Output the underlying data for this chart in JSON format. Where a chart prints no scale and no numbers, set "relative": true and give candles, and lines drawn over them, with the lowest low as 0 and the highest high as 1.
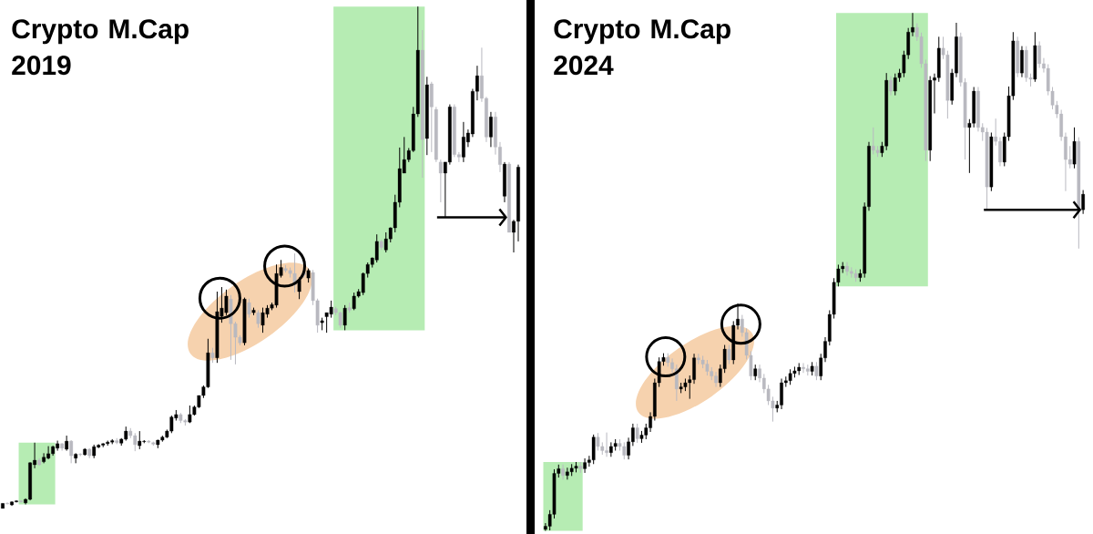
{
  "chart_data": [
    {
      "type": "candlestick",
      "title": "Crypto M.Cap 2019",
      "relative": true,
      "marker": "none",
      "categories": [
        null,
        null,
        null,
        null,
        null,
        null,
        null,
        null,
        null,
        null,
        null,
        null,
        null,
        null,
        null,
        null,
        null,
        null,
        null,
        null,
        null,
        null,
        null,
        null,
        null,
        null,
        null,
        null,
        null,
        null,
        null,
        null,
        null,
        null,
        null,
        null,
        null,
        null,
        null,
        null,
        null,
        null,
        null,
        null,
        null,
        null,
        null,
        null,
        null,
        null,
        null,
        null,
        null,
        null,
        null,
        null,
        null,
        null,
        null,
        null,
        null,
        null,
        null,
        null,
        null,
        null,
        null,
        null,
        null,
        null,
        null,
        null,
        null,
        null,
        null,
        null,
        null,
        null,
        null,
        null,
        null,
        null,
        null,
        null,
        null,
        null,
        null,
        null,
        null,
        null,
        null,
        null,
        null,
        null,
        null,
        null,
        null,
        null,
        null,
        null,
        null,
        null,
        null,
        null,
        null,
        null,
        null,
        null,
        null,
        null,
        null,
        null,
        null,
        null
      ],
      "ohlc": [
        [
          0,
          0.01,
          0,
          0.01
        ],
        [
          0.01,
          0.012,
          0.008,
          0.009
        ],
        [
          0.007,
          0.014,
          0.005,
          0.013
        ],
        [
          0.013,
          0.016,
          0.012,
          0.015
        ],
        [
          0.015,
          0.016,
          0.012,
          0.013
        ],
        [
          0.011,
          0.02,
          0.008,
          0.018
        ],
        [
          0.018,
          0.092,
          0.016,
          0.091
        ],
        [
          0.087,
          0.131,
          0.08,
          0.096
        ],
        [
          0.096,
          0.1,
          0.085,
          0.087
        ],
        [
          0.093,
          0.11,
          0.09,
          0.102
        ],
        [
          0.1,
          0.124,
          0.098,
          0.109
        ],
        [
          0.109,
          0.125,
          0.105,
          0.123
        ],
        [
          0.12,
          0.135,
          0.115,
          0.129
        ],
        [
          0.129,
          0.13,
          0.115,
          0.12
        ],
        [
          0.118,
          0.145,
          0.115,
          0.134
        ],
        [
          0.134,
          0.136,
          0.09,
          0.105
        ],
        [
          0.1,
          0.11,
          0.09,
          0.108
        ],
        [
          0.108,
          0.11,
          0.104,
          0.107
        ],
        [
          0.107,
          0.12,
          0.105,
          0.118
        ],
        [
          0.118,
          0.12,
          0.1,
          0.105
        ],
        [
          0.105,
          0.127,
          0.1,
          0.123
        ],
        [
          0.122,
          0.128,
          0.12,
          0.126
        ],
        [
          0.126,
          0.13,
          0.122,
          0.129
        ],
        [
          0.129,
          0.135,
          0.125,
          0.132
        ],
        [
          0.132,
          0.138,
          0.128,
          0.135
        ],
        [
          0.135,
          0.14,
          0.128,
          0.131
        ],
        [
          0.13,
          0.14,
          0.125,
          0.138
        ],
        [
          0.138,
          0.163,
          0.135,
          0.154
        ],
        [
          0.154,
          0.16,
          0.14,
          0.145
        ],
        [
          0.145,
          0.15,
          0.114,
          0.127
        ],
        [
          0.125,
          0.154,
          0.118,
          0.134
        ],
        [
          0.133,
          0.136,
          0.13,
          0.134
        ],
        [
          0.134,
          0.136,
          0.13,
          0.132
        ],
        [
          0.131,
          0.133,
          0.125,
          0.128
        ],
        [
          0.127,
          0.137,
          0.12,
          0.136
        ],
        [
          0.136,
          0.145,
          0.133,
          0.142
        ],
        [
          0.142,
          0.157,
          0.14,
          0.154
        ],
        [
          0.154,
          0.185,
          0.15,
          0.182
        ],
        [
          0.18,
          0.196,
          0.175,
          0.187
        ],
        [
          0.187,
          0.19,
          0.17,
          0.175
        ],
        [
          0.175,
          0.178,
          0.165,
          0.172
        ],
        [
          0.172,
          0.205,
          0.17,
          0.187
        ],
        [
          0.187,
          0.205,
          0.185,
          0.202
        ],
        [
          0.202,
          0.225,
          0.2,
          0.225
        ],
        [
          0.225,
          0.245,
          0.22,
          0.242
        ],
        [
          0.242,
          0.338,
          0.24,
          0.31
        ],
        [
          0.31,
          0.32,
          0.29,
          0.3
        ],
        [
          0.3,
          0.432,
          0.29,
          0.392
        ],
        [
          0.383,
          0.441,
          0.37,
          0.399
        ],
        [
          0.39,
          0.436,
          0.385,
          0.423
        ],
        [
          0.417,
          0.425,
          0.296,
          0.368
        ],
        [
          0.368,
          0.372,
          0.287,
          0.341
        ],
        [
          0.341,
          0.345,
          0.325,
          0.33
        ],
        [
          0.33,
          0.42,
          0.325,
          0.417
        ],
        [
          0.41,
          0.418,
          0.38,
          0.387
        ],
        [
          0.39,
          0.4,
          0.385,
          0.395
        ],
        [
          0.39,
          0.395,
          0.36,
          0.368
        ],
        [
          0.365,
          0.4,
          0.35,
          0.39
        ],
        [
          0.387,
          0.405,
          0.38,
          0.399
        ],
        [
          0.399,
          0.41,
          0.395,
          0.406
        ],
        [
          0.405,
          0.486,
          0.4,
          0.468
        ],
        [
          0.464,
          0.495,
          0.46,
          0.48
        ],
        [
          0.478,
          0.485,
          0.47,
          0.474
        ],
        [
          0.474,
          0.48,
          0.46,
          0.468
        ],
        [
          0.468,
          0.508,
          0.43,
          0.446
        ],
        [
          0.432,
          0.46,
          0.417,
          0.455
        ],
        [
          0.47,
          0.48,
          0.46,
          0.465
        ],
        [
          0.459,
          0.478,
          0.45,
          0.474
        ],
        [
          0.47,
          0.475,
          0.405,
          0.414
        ],
        [
          0.414,
          0.418,
          0.35,
          0.365
        ],
        [
          0.37,
          0.38,
          0.355,
          0.374
        ],
        [
          0.382,
          0.39,
          0.35,
          0.39
        ],
        [
          0.387,
          0.414,
          0.38,
          0.401
        ],
        [
          0.398,
          0.402,
          0.385,
          0.39
        ],
        [
          0.39,
          0.392,
          0.36,
          0.365
        ],
        [
          0.365,
          0.405,
          0.355,
          0.399
        ],
        [
          0.4,
          0.41,
          0.39,
          0.395
        ],
        [
          0.398,
          0.43,
          0.395,
          0.423
        ],
        [
          0.423,
          0.437,
          0.42,
          0.432
        ],
        [
          0.43,
          0.47,
          0.425,
          0.468
        ],
        [
          0.468,
          0.49,
          0.46,
          0.486
        ],
        [
          0.486,
          0.5,
          0.48,
          0.499
        ],
        [
          0.495,
          0.546,
          0.49,
          0.532
        ],
        [
          0.532,
          0.535,
          0.515,
          0.52
        ],
        [
          0.515,
          0.55,
          0.51,
          0.537
        ],
        [
          0.537,
          0.56,
          0.53,
          0.559
        ],
        [
          0.559,
          0.625,
          0.55,
          0.61
        ],
        [
          0.61,
          0.719,
          0.6,
          0.677
        ],
        [
          0.668,
          0.74,
          0.668,
          0.695
        ],
        [
          0.695,
          0.718,
          0.69,
          0.713
        ],
        [
          0.713,
          0.8,
          0.71,
          0.786
        ],
        [
          0.786,
          1,
          0.78,
          0.913
        ],
        [
          0.913,
          0.953,
          0.659,
          0.735
        ],
        [
          0.737,
          0.86,
          0.704,
          0.844
        ],
        [
          0.846,
          0.85,
          0.71,
          0.8
        ],
        [
          0.795,
          0.8,
          0.69,
          0.695
        ],
        [
          0.69,
          0.695,
          0.61,
          0.668
        ],
        [
          0.668,
          0.69,
          0.58,
          0.69
        ],
        [
          0.69,
          0.805,
          0.685,
          0.8
        ],
        [
          0.8,
          0.805,
          0.7,
          0.705
        ],
        [
          0.705,
          0.71,
          0.69,
          0.7
        ],
        [
          0.7,
          0.77,
          0.69,
          0.74
        ],
        [
          0.73,
          0.755,
          0.72,
          0.748
        ],
        [
          0.746,
          0.836,
          0.74,
          0.831
        ],
        [
          0.831,
          0.882,
          0.813,
          0.862
        ],
        [
          0.862,
          0.918,
          0.81,
          0.817
        ],
        [
          0.817,
          0.82,
          0.73,
          0.74
        ],
        [
          0.74,
          0.79,
          0.72,
          0.78
        ],
        [
          0.78,
          0.79,
          0.705,
          0.72
        ],
        [
          0.72,
          0.73,
          0.67,
          0.685
        ],
        [
          0.622,
          0.69,
          0.61,
          0.686
        ],
        [
          0.686,
          0.69,
          0.55,
          0.55
        ],
        [
          0.55,
          0.575,
          0.51,
          0.572
        ],
        [
          0.572,
          0.685,
          0.532,
          0.68
        ]
      ],
      "colors": [
        "#000000",
        "#b9b9c0",
        "#000000",
        "#000000",
        "#b9b9c0",
        "#000000",
        "#000000",
        "#000000",
        "#b9b9c0",
        "#000000",
        "#000000",
        "#000000",
        "#000000",
        "#b9b9c0",
        "#000000",
        "#b9b9c0",
        "#000000",
        "#b9b9c0",
        "#000000",
        "#b9b9c0",
        "#000000",
        "#000000",
        "#000000",
        "#000000",
        "#000000",
        "#b9b9c0",
        "#000000",
        "#000000",
        "#b9b9c0",
        "#b9b9c0",
        "#000000",
        "#000000",
        "#b9b9c0",
        "#b9b9c0",
        "#000000",
        "#000000",
        "#000000",
        "#000000",
        "#000000",
        "#b9b9c0",
        "#b9b9c0",
        "#000000",
        "#000000",
        "#000000",
        "#000000",
        "#000000",
        "#b9b9c0",
        "#000000",
        "#000000",
        "#000000",
        "#b9b9c0",
        "#b9b9c0",
        "#b9b9c0",
        "#000000",
        "#b9b9c0",
        "#000000",
        "#b9b9c0",
        "#000000",
        "#000000",
        "#000000",
        "#000000",
        "#000000",
        "#b9b9c0",
        "#b9b9c0",
        "#b9b9c0",
        "#000000",
        "#b9b9c0",
        "#000000",
        "#b9b9c0",
        "#b9b9c0",
        "#000000",
        "#000000",
        "#000000",
        "#b9b9c0",
        "#b9b9c0",
        "#000000",
        "#b9b9c0",
        "#000000",
        "#000000",
        "#000000",
        "#000000",
        "#000000",
        "#000000",
        "#b9b9c0",
        "#000000",
        "#000000",
        "#000000",
        "#000000",
        "#000000",
        "#000000",
        "#000000",
        "#000000",
        "#b9b9c0",
        "#000000",
        "#b9b9c0",
        "#b9b9c0",
        "#b9b9c0",
        "#000000",
        "#000000",
        "#b9b9c0",
        "#b9b9c0",
        "#000000",
        "#000000",
        "#000000",
        "#000000",
        "#b9b9c0",
        "#b9b9c0",
        "#000000",
        "#b9b9c0",
        "#b9b9c0",
        "#000000",
        "#b9b9c0",
        "#000000",
        "#000000"
      ]
    },
    {
      "type": "candlestick",
      "title": "Crypto M.Cap 2024",
      "relative": true,
      "marker": "none",
      "categories": [
        null,
        null,
        null,
        null,
        null,
        null,
        null,
        null,
        null,
        null,
        null,
        null,
        null,
        null,
        null,
        null,
        null,
        null,
        null,
        null,
        null,
        null,
        null,
        null,
        null,
        null,
        null,
        null,
        null,
        null,
        null,
        null,
        null,
        null,
        null,
        null,
        null,
        null,
        null,
        null,
        null,
        null,
        null,
        null,
        null,
        null,
        null,
        null,
        null,
        null,
        null,
        null,
        null,
        null,
        null,
        null,
        null,
        null,
        null,
        null,
        null,
        null,
        null,
        null,
        null,
        null,
        null,
        null,
        null,
        null,
        null,
        null,
        null,
        null,
        null,
        null,
        null,
        null,
        null,
        null,
        null,
        null,
        null,
        null,
        null,
        null,
        null,
        null,
        null,
        null,
        null,
        null,
        null,
        null,
        null,
        null,
        null,
        null,
        null,
        null,
        null,
        null,
        null,
        null,
        null,
        null,
        null,
        null,
        null,
        null,
        null,
        null,
        null,
        null,
        null,
        null,
        null,
        null,
        null,
        null,
        null,
        null,
        null,
        null
      ],
      "ohlc": [
        [
          0.003,
          0.015,
          0,
          0.009
        ],
        [
          0.009,
          0.04,
          0.001,
          0.032
        ],
        [
          0.032,
          0.119,
          0.024,
          0.111
        ],
        [
          0.111,
          0.128,
          0.103,
          0.12
        ],
        [
          0.12,
          0.128,
          0.099,
          0.107
        ],
        [
          0.107,
          0.122,
          0.099,
          0.114
        ],
        [
          0.114,
          0.129,
          0.106,
          0.121
        ],
        [
          0.121,
          0.133,
          0.113,
          0.125
        ],
        [
          0.125,
          0.133,
          0.112,
          0.12
        ],
        [
          0.12,
          0.14,
          0.112,
          0.132
        ],
        [
          0.132,
          0.145,
          0.124,
          0.137
        ],
        [
          0.137,
          0.186,
          0.129,
          0.181
        ],
        [
          0.181,
          0.189,
          0.155,
          0.163
        ],
        [
          0.163,
          0.171,
          0.147,
          0.155
        ],
        [
          0.155,
          0.19,
          0.143,
          0.151
        ],
        [
          0.151,
          0.171,
          0.143,
          0.163
        ],
        [
          0.163,
          0.177,
          0.155,
          0.169
        ],
        [
          0.169,
          0.177,
          0.155,
          0.163
        ],
        [
          0.163,
          0.171,
          0.138,
          0.146
        ],
        [
          0.146,
          0.18,
          0.138,
          0.172
        ],
        [
          0.172,
          0.207,
          0.164,
          0.199
        ],
        [
          0.199,
          0.207,
          0.17,
          0.178
        ],
        [
          0.178,
          0.193,
          0.17,
          0.185
        ],
        [
          0.185,
          0.207,
          0.177,
          0.199
        ],
        [
          0.199,
          0.229,
          0.191,
          0.221
        ],
        [
          0.221,
          0.294,
          0.213,
          0.286
        ],
        [
          0.286,
          0.335,
          0.278,
          0.327
        ],
        [
          0.327,
          0.343,
          0.319,
          0.335
        ],
        [
          0.335,
          0.343,
          0.317,
          0.325
        ],
        [
          0.325,
          0.333,
          0.305,
          0.313
        ],
        [
          0.313,
          0.321,
          0.251,
          0.274
        ],
        [
          0.274,
          0.286,
          0.266,
          0.278
        ],
        [
          0.278,
          0.294,
          0.27,
          0.286
        ],
        [
          0.286,
          0.3,
          0.255,
          0.292
        ],
        [
          0.292,
          0.342,
          0.284,
          0.334
        ],
        [
          0.334,
          0.342,
          0.322,
          0.33
        ],
        [
          0.33,
          0.338,
          0.314,
          0.322
        ],
        [
          0.322,
          0.33,
          0.3,
          0.308
        ],
        [
          0.308,
          0.316,
          0.291,
          0.299
        ],
        [
          0.299,
          0.307,
          0.278,
          0.286
        ],
        [
          0.286,
          0.321,
          0.278,
          0.313
        ],
        [
          0.313,
          0.359,
          0.305,
          0.351
        ],
        [
          0.351,
          0.359,
          0.322,
          0.33
        ],
        [
          0.33,
          0.405,
          0.322,
          0.397
        ],
        [
          0.397,
          0.439,
          0.389,
          0.409
        ],
        [
          0.409,
          0.417,
          0.375,
          0.383
        ],
        [
          0.383,
          0.391,
          0.331,
          0.339
        ],
        [
          0.339,
          0.347,
          0.291,
          0.299
        ],
        [
          0.299,
          0.321,
          0.291,
          0.313
        ],
        [
          0.313,
          0.321,
          0.287,
          0.295
        ],
        [
          0.295,
          0.303,
          0.266,
          0.274
        ],
        [
          0.274,
          0.282,
          0.243,
          0.251
        ],
        [
          0.251,
          0.259,
          0.211,
          0.237
        ],
        [
          0.237,
          0.251,
          0.229,
          0.243
        ],
        [
          0.243,
          0.294,
          0.235,
          0.286
        ],
        [
          0.286,
          0.298,
          0.278,
          0.29
        ],
        [
          0.29,
          0.312,
          0.282,
          0.304
        ],
        [
          0.304,
          0.317,
          0.296,
          0.309
        ],
        [
          0.309,
          0.324,
          0.301,
          0.316
        ],
        [
          0.316,
          0.324,
          0.305,
          0.313
        ],
        [
          0.313,
          0.321,
          0.3,
          0.308
        ],
        [
          0.308,
          0.326,
          0.3,
          0.318
        ],
        [
          0.318,
          0.326,
          0.291,
          0.299
        ],
        [
          0.299,
          0.342,
          0.291,
          0.334
        ],
        [
          0.334,
          0.374,
          0.326,
          0.366
        ],
        [
          0.366,
          0.426,
          0.358,
          0.418
        ],
        [
          0.418,
          0.488,
          0.41,
          0.48
        ],
        [
          0.48,
          0.514,
          0.472,
          0.506
        ],
        [
          0.506,
          0.519,
          0.498,
          0.511
        ],
        [
          0.511,
          0.519,
          0.493,
          0.501
        ],
        [
          0.501,
          0.509,
          0.489,
          0.497
        ],
        [
          0.497,
          0.505,
          0.481,
          0.489
        ],
        [
          0.489,
          0.505,
          0.481,
          0.497
        ],
        [
          0.497,
          0.634,
          0.489,
          0.626
        ],
        [
          0.626,
          0.751,
          0.618,
          0.743
        ],
        [
          0.743,
          0.779,
          0.727,
          0.735
        ],
        [
          0.735,
          0.743,
          0.722,
          0.73
        ],
        [
          0.73,
          0.751,
          0.722,
          0.743
        ],
        [
          0.743,
          0.884,
          0.735,
          0.87
        ],
        [
          0.87,
          0.878,
          0.841,
          0.849
        ],
        [
          0.849,
          0.883,
          0.841,
          0.875
        ],
        [
          0.875,
          0.892,
          0.867,
          0.884
        ],
        [
          0.884,
          0.927,
          0.876,
          0.919
        ],
        [
          0.919,
          0.971,
          0.911,
          0.963
        ],
        [
          0.963,
          1,
          0.955,
          0.972
        ],
        [
          0.972,
          0.98,
          0.946,
          0.954
        ],
        [
          0.954,
          0.962,
          0.894,
          0.902
        ],
        [
          0.902,
          0.91,
          0.714,
          0.735
        ],
        [
          0.735,
          0.878,
          0.714,
          0.87
        ],
        [
          0.87,
          0.883,
          0.806,
          0.875
        ],
        [
          0.875,
          0.954,
          0.867,
          0.932
        ],
        [
          0.932,
          0.954,
          0.911,
          0.919
        ],
        [
          0.919,
          0.927,
          0.796,
          0.831
        ],
        [
          0.831,
          0.892,
          0.823,
          0.884
        ],
        [
          0.884,
          0.981,
          0.876,
          0.954
        ],
        [
          0.954,
          0.962,
          0.858,
          0.866
        ],
        [
          0.866,
          0.874,
          0.717,
          0.779
        ],
        [
          0.779,
          0.795,
          0.691,
          0.787
        ],
        [
          0.787,
          0.857,
          0.779,
          0.849
        ],
        [
          0.849,
          0.857,
          0.771,
          0.779
        ],
        [
          0.779,
          0.787,
          0.753,
          0.77
        ],
        [
          0.77,
          0.778,
          0.62,
          0.664
        ],
        [
          0.664,
          0.769,
          0.656,
          0.761
        ],
        [
          0.761,
          0.796,
          0.744,
          0.752
        ],
        [
          0.752,
          0.76,
          0.704,
          0.712
        ],
        [
          0.712,
          0.769,
          0.704,
          0.761
        ],
        [
          0.761,
          0.858,
          0.753,
          0.84
        ],
        [
          0.84,
          0.963,
          0.832,
          0.946
        ],
        [
          0.946,
          0.954,
          0.876,
          0.884
        ],
        [
          0.884,
          0.936,
          0.876,
          0.928
        ],
        [
          0.928,
          0.936,
          0.867,
          0.875
        ],
        [
          0.875,
          0.883,
          0.858,
          0.872
        ],
        [
          0.872,
          0.963,
          0.867,
          0.937
        ],
        [
          0.937,
          0.945,
          0.894,
          0.902
        ],
        [
          0.902,
          0.913,
          0.885,
          0.893
        ],
        [
          0.893,
          0.901,
          0.841,
          0.849
        ],
        [
          0.849,
          0.857,
          0.814,
          0.822
        ],
        [
          0.822,
          0.83,
          0.797,
          0.805
        ],
        [
          0.805,
          0.813,
          0.753,
          0.761
        ],
        [
          0.761,
          0.769,
          0.656,
          0.717
        ],
        [
          0.717,
          0.743,
          0.7,
          0.708
        ],
        [
          0.708,
          0.779,
          0.7,
          0.752
        ],
        [
          0.752,
          0.76,
          0.545,
          0.62
        ],
        [
          0.62,
          0.658,
          0.612,
          0.65
        ]
      ],
      "colors": [
        "#000000",
        "#000000",
        "#000000",
        "#000000",
        "#b9b9c0",
        "#000000",
        "#000000",
        "#000000",
        "#b9b9c0",
        "#000000",
        "#000000",
        "#000000",
        "#b9b9c0",
        "#b9b9c0",
        "#b9b9c0",
        "#000000",
        "#000000",
        "#b9b9c0",
        "#b9b9c0",
        "#000000",
        "#000000",
        "#b9b9c0",
        "#000000",
        "#000000",
        "#000000",
        "#000000",
        "#000000",
        "#000000",
        "#b9b9c0",
        "#b9b9c0",
        "#b9b9c0",
        "#000000",
        "#000000",
        "#000000",
        "#000000",
        "#b9b9c0",
        "#b9b9c0",
        "#b9b9c0",
        "#b9b9c0",
        "#b9b9c0",
        "#000000",
        "#000000",
        "#b9b9c0",
        "#000000",
        "#000000",
        "#b9b9c0",
        "#b9b9c0",
        "#b9b9c0",
        "#000000",
        "#b9b9c0",
        "#b9b9c0",
        "#b9b9c0",
        "#b9b9c0",
        "#000000",
        "#000000",
        "#000000",
        "#000000",
        "#000000",
        "#000000",
        "#b9b9c0",
        "#b9b9c0",
        "#000000",
        "#b9b9c0",
        "#000000",
        "#000000",
        "#000000",
        "#000000",
        "#000000",
        "#000000",
        "#b9b9c0",
        "#b9b9c0",
        "#b9b9c0",
        "#000000",
        "#000000",
        "#000000",
        "#b9b9c0",
        "#b9b9c0",
        "#000000",
        "#000000",
        "#b9b9c0",
        "#000000",
        "#000000",
        "#000000",
        "#000000",
        "#000000",
        "#b9b9c0",
        "#b9b9c0",
        "#b9b9c0",
        "#000000",
        "#000000",
        "#000000",
        "#b9b9c0",
        "#b9b9c0",
        "#000000",
        "#000000",
        "#b9b9c0",
        "#b9b9c0",
        "#000000",
        "#000000",
        "#b9b9c0",
        "#b9b9c0",
        "#b9b9c0",
        "#000000",
        "#b9b9c0",
        "#b9b9c0",
        "#000000",
        "#000000",
        "#000000",
        "#b9b9c0",
        "#000000",
        "#b9b9c0",
        "#b9b9c0",
        "#000000",
        "#b9b9c0",
        "#b9b9c0",
        "#b9b9c0",
        "#b9b9c0",
        "#b9b9c0",
        "#b9b9c0",
        "#b9b9c0",
        "#b9b9c0",
        "#000000",
        "#b9b9c0",
        "#000000"
      ]
    }
  ]
}
